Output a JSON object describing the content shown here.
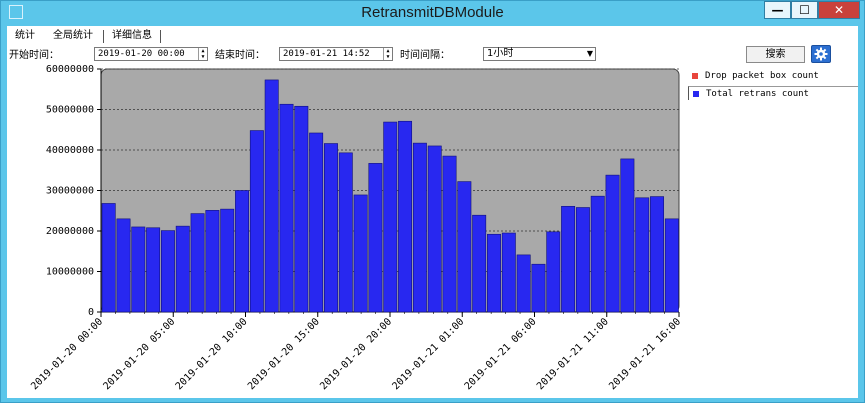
{
  "window": {
    "title": "RetransmitDBModule",
    "min_glyph": "—",
    "max_glyph": "☐",
    "close_glyph": "✕"
  },
  "tabs": [
    "统计",
    "全局统计",
    "详细信息"
  ],
  "filters": {
    "start_label": "开始时间：",
    "start_value": "2019-01-20 00:00",
    "end_label": "结束时间：",
    "end_value": "2019-01-21 14:52",
    "interval_label": "时间间隔：",
    "interval_value": "1小时",
    "search_label": "搜索"
  },
  "colors": {
    "bar": "#2828f0",
    "drop": "#e8453c",
    "plot_bg": "#a9a9a9",
    "window_chrome": "#5bc6ea",
    "gear_button": "#2c6fd1"
  },
  "icons": {
    "gear": "gear-icon",
    "app": "window-icon"
  },
  "legend": [
    {
      "label": "Drop packet box count",
      "color": "#e8453c"
    },
    {
      "label": "Total retrans count",
      "color": "#2828f0"
    }
  ],
  "chart_data": {
    "type": "bar",
    "series": [
      {
        "name": "Drop packet box count",
        "values": []
      },
      {
        "name": "Total retrans count",
        "values": [
          26800000,
          23000000,
          21000000,
          20800000,
          20100000,
          21200000,
          24300000,
          25100000,
          25400000,
          30000000,
          44800000,
          57300000,
          51300000,
          50800000,
          44200000,
          41600000,
          39300000,
          28900000,
          36700000,
          46900000,
          47100000,
          41700000,
          41000000,
          38500000,
          32200000,
          23900000,
          19200000,
          19500000,
          14100000,
          11800000,
          19800000,
          26100000,
          25800000,
          28600000,
          33800000,
          37800000,
          28200000,
          28500000,
          23000000
        ]
      }
    ],
    "ylim": [
      0,
      60000000
    ],
    "yticks": [
      0,
      10000000,
      20000000,
      30000000,
      40000000,
      50000000,
      60000000
    ],
    "ytick_labels": [
      "0",
      "10000000",
      "20000000",
      "30000000",
      "40000000",
      "50000000",
      "60000000"
    ],
    "xtick_labels": [
      "2019-01-20 00:00",
      "2019-01-20 05:00",
      "2019-01-20 10:00",
      "2019-01-20 15:00",
      "2019-01-20 20:00",
      "2019-01-21 01:00",
      "2019-01-21 06:00",
      "2019-01-21 11:00",
      "2019-01-21 16:00"
    ],
    "xtick_hours": [
      0,
      5,
      10,
      15,
      20,
      25,
      30,
      35,
      40
    ],
    "grid": true,
    "legend_position": "right"
  }
}
